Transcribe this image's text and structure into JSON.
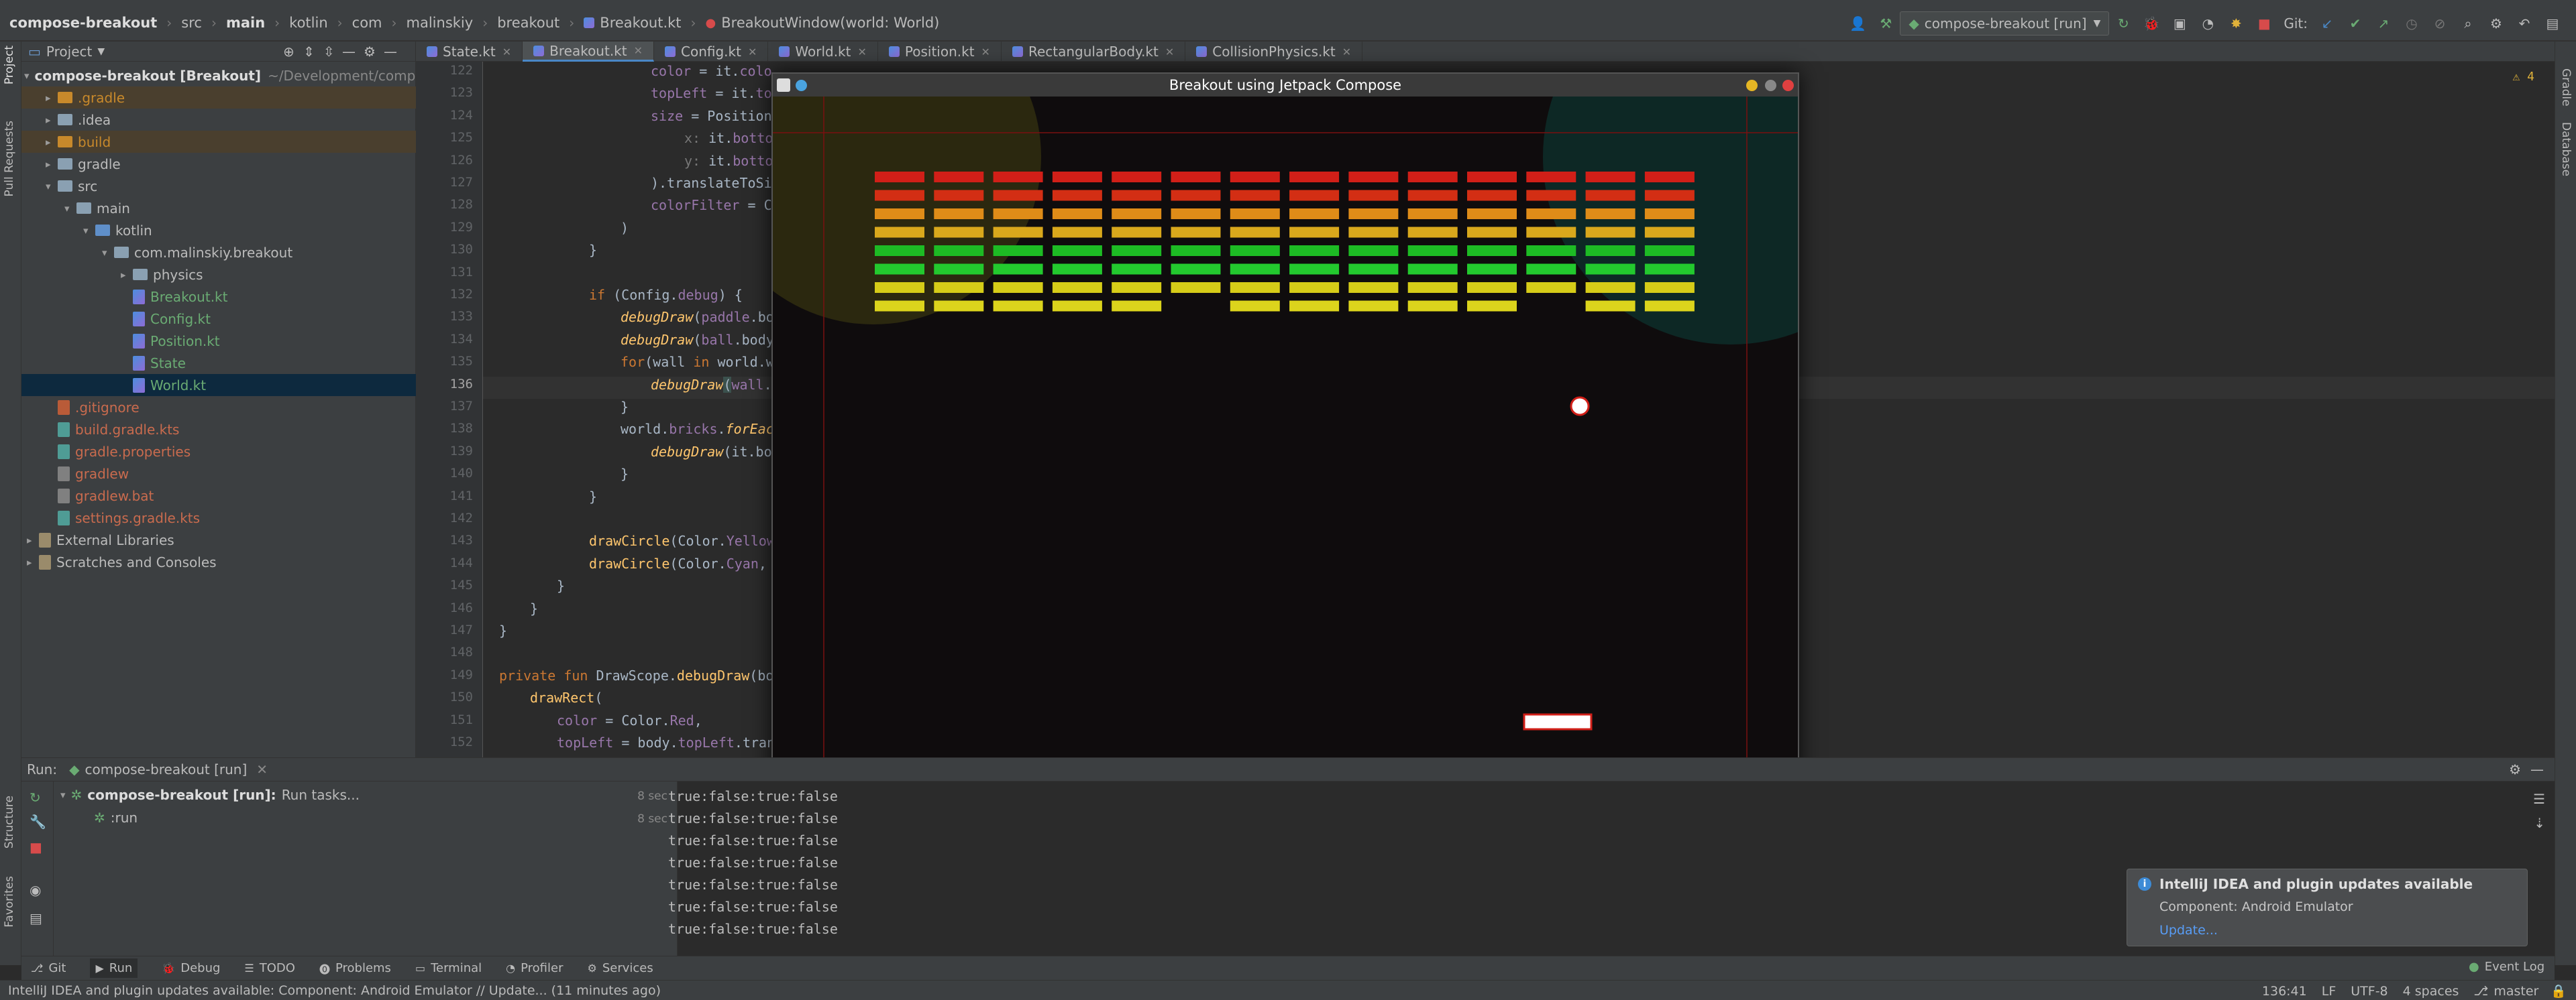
{
  "navbar": {
    "crumbs": [
      "compose-breakout",
      "src",
      "main",
      "kotlin",
      "com",
      "malinskiy",
      "breakout",
      "Breakout.kt",
      "BreakoutWindow(world: World)"
    ],
    "run_config": "compose-breakout [run]",
    "git_label": "Git:"
  },
  "sidebar_left": {
    "project": "Project",
    "pull_requests": "Pull Requests",
    "structure": "Structure",
    "favorites": "Favorites"
  },
  "sidebar_right": {
    "gradle": "Gradle",
    "database": "Database"
  },
  "project_panel": {
    "title": "Project",
    "root_name": "compose-breakout [Breakout]",
    "root_path": "~/Development/compose",
    "items": [
      {
        "label": ".gradle",
        "indent": 1,
        "kind": "folder-orange",
        "arrow": "▸"
      },
      {
        "label": ".idea",
        "indent": 1,
        "kind": "folder",
        "arrow": "▸"
      },
      {
        "label": "build",
        "indent": 1,
        "kind": "folder-orange",
        "arrow": "▸"
      },
      {
        "label": "gradle",
        "indent": 1,
        "kind": "folder",
        "arrow": "▸"
      },
      {
        "label": "src",
        "indent": 1,
        "kind": "folder",
        "arrow": "▾"
      },
      {
        "label": "main",
        "indent": 2,
        "kind": "folder",
        "arrow": "▾"
      },
      {
        "label": "kotlin",
        "indent": 3,
        "kind": "folder-blue",
        "arrow": "▾"
      },
      {
        "label": "com.malinskiy.breakout",
        "indent": 4,
        "kind": "folder",
        "arrow": "▾"
      },
      {
        "label": "physics",
        "indent": 5,
        "kind": "folder",
        "arrow": "▸"
      },
      {
        "label": "Breakout.kt",
        "indent": 5,
        "kind": "kt",
        "arrow": ""
      },
      {
        "label": "Config.kt",
        "indent": 5,
        "kind": "kt",
        "arrow": ""
      },
      {
        "label": "Position.kt",
        "indent": 5,
        "kind": "kt",
        "arrow": ""
      },
      {
        "label": "State",
        "indent": 5,
        "kind": "kt",
        "arrow": ""
      },
      {
        "label": "World.kt",
        "indent": 5,
        "kind": "kt",
        "arrow": ""
      },
      {
        "label": ".gitignore",
        "indent": 1,
        "kind": "git",
        "arrow": ""
      },
      {
        "label": "build.gradle.kts",
        "indent": 1,
        "kind": "gradle",
        "arrow": ""
      },
      {
        "label": "gradle.properties",
        "indent": 1,
        "kind": "gradle",
        "arrow": ""
      },
      {
        "label": "gradlew",
        "indent": 1,
        "kind": "bat",
        "arrow": ""
      },
      {
        "label": "gradlew.bat",
        "indent": 1,
        "kind": "bat",
        "arrow": ""
      },
      {
        "label": "settings.gradle.kts",
        "indent": 1,
        "kind": "gradle",
        "arrow": ""
      },
      {
        "label": "External Libraries",
        "indent": 0,
        "kind": "lib",
        "arrow": "▸"
      },
      {
        "label": "Scratches and Consoles",
        "indent": 0,
        "kind": "lib",
        "arrow": "▸"
      }
    ]
  },
  "editor_tabs": [
    "State.kt",
    "Breakout.kt",
    "Config.kt",
    "World.kt",
    "Position.kt",
    "RectangularBody.kt",
    "CollisionPhysics.kt"
  ],
  "editor": {
    "line_numbers": [
      "122",
      "123",
      "124",
      "125",
      "126",
      "127",
      "128",
      "129",
      "130",
      "131",
      "132",
      "133",
      "134",
      "135",
      "136",
      "137",
      "138",
      "139",
      "140",
      "141",
      "142",
      "143",
      "144",
      "145",
      "146",
      "147",
      "148",
      "149",
      "150",
      "151",
      "152"
    ],
    "current_line": "136",
    "warning_count": "4"
  },
  "game": {
    "title": "Breakout using Jetpack Compose",
    "brick_row_colors": [
      "#d11f18",
      "#d32e14",
      "#df8c18",
      "#d9a81c",
      "#1dbb24",
      "#23c92e",
      "#d6cc18",
      "#dcd41c"
    ]
  },
  "run_panel": {
    "label": "Run:",
    "tab": "compose-breakout [run]",
    "tree_root": "compose-breakout [run]:",
    "tree_root_suffix": "Run tasks...",
    "tree_root_time": "8 sec",
    "tree_child": ":run",
    "tree_child_time": "8 sec",
    "console": [
      "true:false:true:false",
      "true:false:true:false",
      "true:false:true:false",
      "true:false:true:false",
      "true:false:true:false",
      "true:false:true:false",
      "true:false:true:false"
    ]
  },
  "bottom_tabs": [
    "Git",
    "Run",
    "Debug",
    "TODO",
    "Problems",
    "Terminal",
    "Profiler",
    "Services"
  ],
  "event_log": "Event Log",
  "notification": {
    "title": "IntelliJ IDEA and plugin updates available",
    "body": "Component: Android Emulator",
    "link": "Update..."
  },
  "status": {
    "message": "IntelliJ IDEA and plugin updates available: Component: Android Emulator // Update... (11 minutes ago)",
    "position": "136:41",
    "line_sep": "LF",
    "encoding": "UTF-8",
    "indent": "4 spaces",
    "branch": "master"
  }
}
